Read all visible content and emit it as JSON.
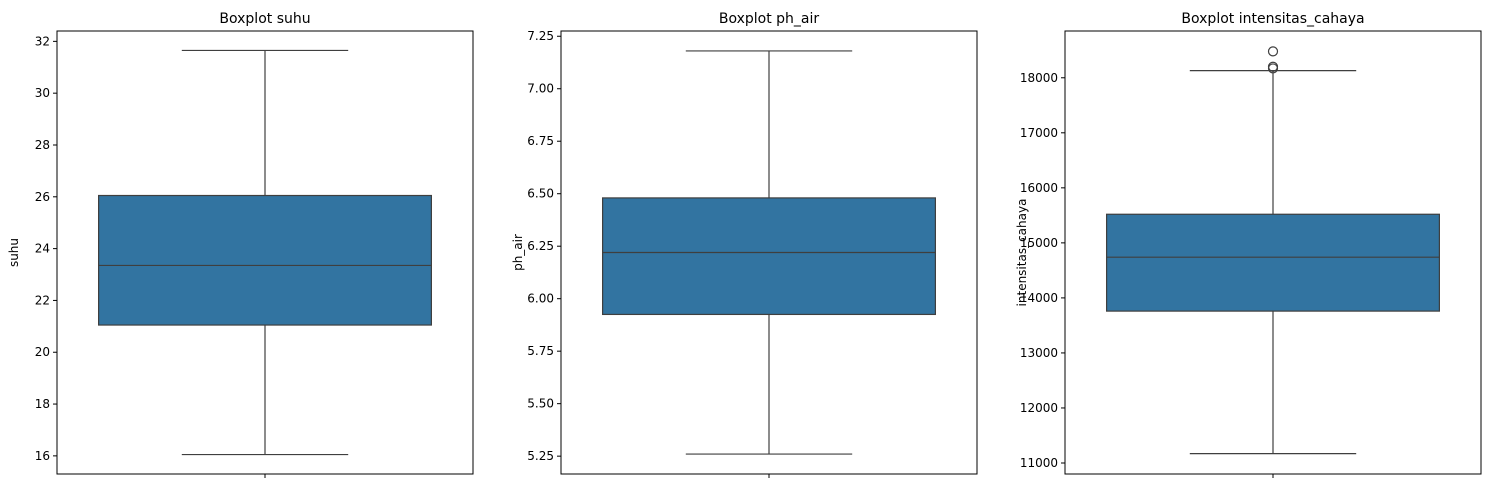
{
  "chart_data": [
    {
      "type": "box",
      "title": "Boxplot suhu",
      "xlabel": "",
      "ylabel": "suhu",
      "ylim": [
        15.3,
        32.4
      ],
      "yticks": [
        "16",
        "18",
        "20",
        "22",
        "24",
        "26",
        "28",
        "30",
        "32"
      ],
      "box": {
        "whisker_low": 16.05,
        "q1": 21.05,
        "median": 23.35,
        "q3": 26.05,
        "whisker_high": 31.65
      },
      "outliers": [],
      "color": "#3274a1",
      "grid": false
    },
    {
      "type": "box",
      "title": "Boxplot ph_air",
      "xlabel": "",
      "ylabel": "ph_air",
      "ylim": [
        5.165,
        7.275
      ],
      "yticks": [
        "5.25",
        "5.50",
        "5.75",
        "6.00",
        "6.25",
        "6.50",
        "6.75",
        "7.00",
        "7.25"
      ],
      "box": {
        "whisker_low": 5.26,
        "q1": 5.925,
        "median": 6.22,
        "q3": 6.48,
        "whisker_high": 7.18
      },
      "outliers": [],
      "color": "#3274a1",
      "grid": false
    },
    {
      "type": "box",
      "title": "Boxplot intensitas_cahaya",
      "xlabel": "",
      "ylabel": "intensitas_cahaya",
      "ylim": [
        10800,
        18850
      ],
      "yticks": [
        "11000",
        "12000",
        "13000",
        "14000",
        "15000",
        "16000",
        "17000",
        "18000"
      ],
      "box": {
        "whisker_low": 11170,
        "q1": 13760,
        "median": 14740,
        "q3": 15520,
        "whisker_high": 18130
      },
      "outliers": [
        18170,
        18200,
        18480
      ],
      "color": "#3274a1",
      "grid": false
    }
  ]
}
